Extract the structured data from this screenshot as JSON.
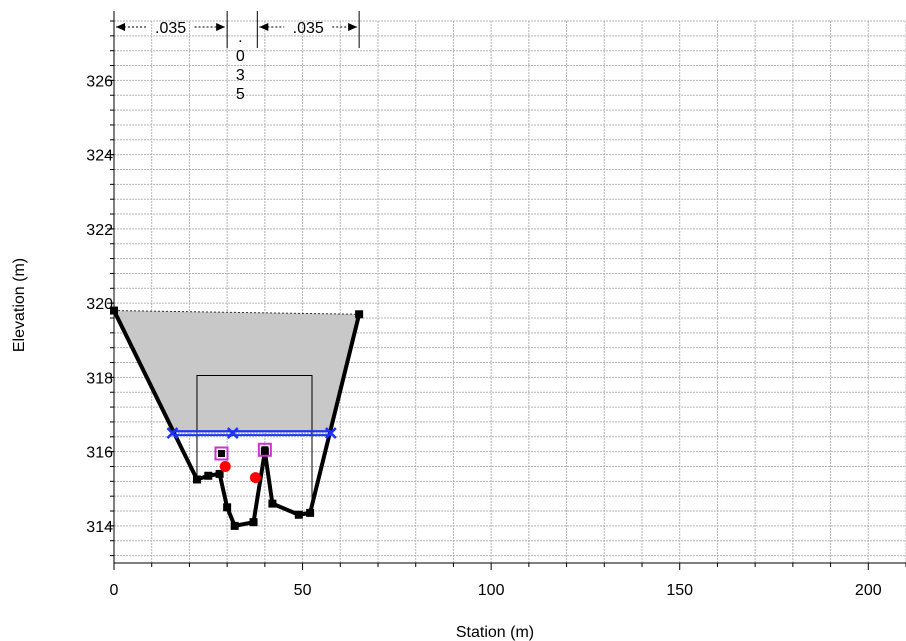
{
  "chart_data": {
    "type": "line",
    "xlabel": "Station (m)",
    "ylabel": "Elevation (m)",
    "xlim": [
      0,
      210
    ],
    "ylim": [
      313,
      327.6
    ],
    "x_ticks": [
      0,
      50,
      100,
      150,
      200
    ],
    "y_ticks": [
      314,
      316,
      318,
      320,
      322,
      324,
      326
    ],
    "grid": true,
    "colors": {
      "ground": "#000000",
      "water": "#1a33ff",
      "fill": "#c8c8c8",
      "bank": "#cc33cc",
      "obstruction": "#ff0000",
      "grid": "#b4b4b4"
    },
    "ground": {
      "x": [
        0,
        22,
        25,
        28,
        30,
        32,
        37,
        40,
        42,
        49,
        52,
        65
      ],
      "y": [
        319.8,
        315.25,
        315.35,
        315.4,
        314.5,
        314.0,
        314.1,
        316.0,
        314.6,
        314.3,
        314.35,
        319.7
      ]
    },
    "water_surface": {
      "x": [
        15.5,
        31.5,
        57.5
      ],
      "y": [
        316.5,
        316.5,
        316.5
      ]
    },
    "flow_area": {
      "x": [
        0,
        65,
        57.5,
        15.5
      ],
      "y": [
        319.8,
        319.7,
        316.5,
        316.5
      ]
    },
    "bridge_opening": {
      "x": [
        22,
        22,
        52.5,
        52.5
      ],
      "y": [
        315.25,
        318.05,
        318.05,
        314.35
      ]
    },
    "bank_stations": {
      "x": [
        28.5,
        40
      ],
      "y": [
        315.95,
        316.05
      ]
    },
    "ineffective_points": {
      "x": [
        29.5,
        37.5
      ],
      "y": [
        315.6,
        315.3
      ]
    },
    "mannings_n": [
      {
        "label": ".035",
        "x_start": 0,
        "x_end": 30
      },
      {
        "label_chars": [
          ".",
          "0",
          "3",
          "5"
        ],
        "x": 33.5
      },
      {
        "label": ".035",
        "x_start": 38,
        "x_end": 65
      }
    ]
  }
}
